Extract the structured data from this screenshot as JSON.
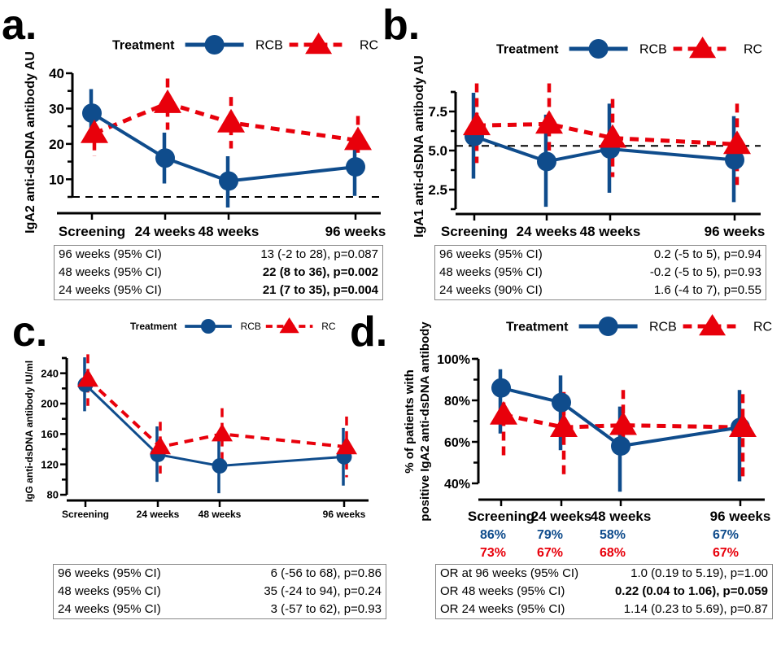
{
  "legend": {
    "title": "Treatment",
    "series": [
      {
        "name": "RCB",
        "color": "#0f4c8c",
        "marker": "circle",
        "line": "solid"
      },
      {
        "name": "RC",
        "color": "#e8000b",
        "marker": "triangle",
        "line": "dashed"
      }
    ]
  },
  "colors": {
    "rcb": "#0f4c8c",
    "rc": "#e8000b",
    "reference_line": "#000000"
  },
  "chart_data": [
    {
      "panel": "a.",
      "type": "line",
      "ylabel": "IgA2 anti-dsDNA antibody AU",
      "xlabel": "",
      "categories": [
        "Screening",
        "24 weeks",
        "48 weeks",
        "96 weeks"
      ],
      "ylim": [
        5,
        40
      ],
      "yticks": [
        10,
        20,
        30,
        40
      ],
      "ytick_labels": [
        "10",
        "20",
        "30",
        "40"
      ],
      "reference_line": 5,
      "legend_position": "top",
      "series": [
        {
          "name": "RCB",
          "values": [
            28.7,
            16,
            9.5,
            13.5
          ],
          "upper": [
            35.5,
            23.2,
            16.5,
            20
          ],
          "lower": [
            22,
            8.8,
            2,
            5.3
          ]
        },
        {
          "name": "RC",
          "values": [
            23,
            31.5,
            26,
            21
          ],
          "upper": [
            29,
            38.5,
            33.3,
            27.9
          ],
          "lower": [
            16.5,
            24,
            18.7,
            17.5
          ]
        }
      ],
      "table": [
        {
          "label": "96 weeks (95% CI)",
          "value": "13 (-2 to 28), p=0.087",
          "bold": false
        },
        {
          "label": "48 weeks (95% CI)",
          "value": "22 (8 to 36), p=0.002",
          "bold": true
        },
        {
          "label": "24 weeks (95% CI)",
          "value": "21 (7 to 35), p=0.004",
          "bold": true
        }
      ]
    },
    {
      "panel": "b.",
      "type": "line",
      "ylabel": "IgA1 anti-dsDNA antibody AU",
      "xlabel": "",
      "categories": [
        "Screening",
        "24 weeks",
        "48 weeks",
        "96 weeks"
      ],
      "ylim": [
        1.25,
        8.75
      ],
      "yticks": [
        2.5,
        5.0,
        7.5
      ],
      "ytick_labels": [
        "2.5",
        "5.0",
        "7.5"
      ],
      "reference_line": 5.3,
      "legend_position": "top",
      "series": [
        {
          "name": "RCB",
          "values": [
            5.9,
            4.3,
            5.1,
            4.4
          ],
          "upper": [
            8.7,
            7.3,
            8.0,
            7.2
          ],
          "lower": [
            3.2,
            1.4,
            2.3,
            1.7
          ]
        },
        {
          "name": "RC",
          "values": [
            6.6,
            6.7,
            5.8,
            5.4
          ],
          "upper": [
            9.3,
            9.3,
            8.3,
            8.0
          ],
          "lower": [
            4.2,
            5.0,
            3.3,
            2.8
          ]
        }
      ],
      "table": [
        {
          "label": "96 weeks (95% CI)",
          "value": "0.2 (-5 to 5), p=0.94",
          "bold": false
        },
        {
          "label": "48 weeks (95% CI)",
          "value": "-0.2 (-5 to 5), p=0.93",
          "bold": false
        },
        {
          "label": "24 weeks (90% CI)",
          "value": "1.6 (-4 to 7), p=0.55",
          "bold": false
        }
      ]
    },
    {
      "panel": "c.",
      "type": "line",
      "ylabel": "IgG anti-dsDNA antibody IU/ml",
      "xlabel": "",
      "categories": [
        "Screening",
        "24 weeks",
        "48 weeks",
        "96 weeks"
      ],
      "ylim": [
        80,
        260
      ],
      "yticks": [
        80,
        120,
        160,
        200,
        240
      ],
      "ytick_labels": [
        "80",
        "120",
        "160",
        "200",
        "240"
      ],
      "reference_line": null,
      "legend_position": "top",
      "series": [
        {
          "name": "RCB",
          "values": [
            225,
            133,
            118,
            130
          ],
          "upper": [
            261,
            170,
            155,
            168
          ],
          "lower": [
            190,
            97,
            82,
            92
          ]
        },
        {
          "name": "RC",
          "values": [
            232,
            143,
            160,
            143
          ],
          "upper": [
            265,
            176,
            194,
            183
          ],
          "lower": [
            197,
            108,
            124,
            103
          ]
        }
      ],
      "table": [
        {
          "label": "96 weeks (95% CI)",
          "value": "6 (-56 to 68), p=0.86",
          "bold": false
        },
        {
          "label": "48 weeks (95% CI)",
          "value": "35 (-24 to 94), p=0.24",
          "bold": false
        },
        {
          "label": "24 weeks (95% CI)",
          "value": "3 (-57 to 62), p=0.93",
          "bold": false
        }
      ]
    },
    {
      "panel": "d.",
      "type": "line",
      "ylabel": "% of patients with positive IgA2 anti-dsDNA antibody",
      "ylabel_lines": [
        "% of patients with",
        "positive IgA2 anti-dsDNA antibody"
      ],
      "xlabel": "",
      "categories": [
        "Screening",
        "24 weeks",
        "48 weeks",
        "96 weeks"
      ],
      "ylim": [
        40,
        100
      ],
      "yticks": [
        40,
        60,
        80,
        100
      ],
      "ytick_labels": [
        "40%",
        "60%",
        "80%",
        "100%"
      ],
      "reference_line": null,
      "legend_position": "top",
      "series": [
        {
          "name": "RCB",
          "values": [
            86,
            79,
            58,
            67
          ],
          "upper": [
            95,
            92,
            77,
            85
          ],
          "lower": [
            64,
            56,
            36,
            41
          ]
        },
        {
          "name": "RC",
          "values": [
            73,
            67,
            68,
            67
          ],
          "upper": [
            79,
            84,
            85,
            83
          ],
          "lower": [
            51,
            43,
            54,
            41
          ]
        }
      ],
      "value_labels": {
        "RCB": [
          "86%",
          "79%",
          "58%",
          "67%"
        ],
        "RC": [
          "73%",
          "67%",
          "68%",
          "67%"
        ]
      },
      "table": [
        {
          "label": "OR at 96 weeks (95% CI)",
          "value": "1.0 (0.19 to 5.19), p=1.00",
          "bold": false
        },
        {
          "label": "OR 48 weeks (95% CI)",
          "value": "0.22 (0.04 to 1.06), p=0.059",
          "bold": true
        },
        {
          "label": "OR 24 weeks (95% CI)",
          "value": "1.14 (0.23 to 5.69), p=0.87",
          "bold": false
        }
      ]
    }
  ]
}
